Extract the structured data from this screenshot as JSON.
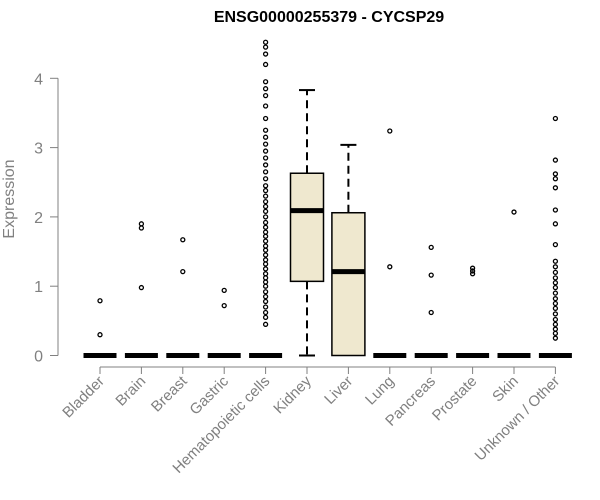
{
  "chart_data": {
    "type": "boxplot",
    "title": "ENSG00000255379 - CYCSP29",
    "xlabel": "",
    "ylabel": "Expression",
    "ylim": [
      0,
      4.5
    ],
    "yticks": [
      0,
      1,
      2,
      3,
      4
    ],
    "categories": [
      "Bladder",
      "Brain",
      "Breast",
      "Gastric",
      "Hematopoietic cells",
      "Kidney",
      "Liver",
      "Lung",
      "Pancreas",
      "Prostate",
      "Skin",
      "Unknown / Other"
    ],
    "boxes": [
      {
        "category": "Bladder",
        "q1": 0,
        "median": 0,
        "q3": 0,
        "whisker_low": 0,
        "whisker_high": 0,
        "outliers": [
          0.3,
          0.79
        ]
      },
      {
        "category": "Brain",
        "q1": 0,
        "median": 0,
        "q3": 0,
        "whisker_low": 0,
        "whisker_high": 0,
        "outliers": [
          0.98,
          1.84,
          1.9
        ]
      },
      {
        "category": "Breast",
        "q1": 0,
        "median": 0,
        "q3": 0,
        "whisker_low": 0,
        "whisker_high": 0,
        "outliers": [
          1.21,
          1.67
        ]
      },
      {
        "category": "Gastric",
        "q1": 0,
        "median": 0,
        "q3": 0,
        "whisker_low": 0,
        "whisker_high": 0,
        "outliers": [
          0.72,
          0.94
        ]
      },
      {
        "category": "Hematopoietic cells",
        "q1": 0,
        "median": 0,
        "q3": 0,
        "whisker_low": 0,
        "whisker_high": 0,
        "outliers": [
          0.45,
          0.55,
          0.62,
          0.7,
          0.78,
          0.85,
          0.92,
          1.0,
          1.06,
          1.12,
          1.18,
          1.25,
          1.32,
          1.38,
          1.45,
          1.52,
          1.58,
          1.65,
          1.72,
          1.78,
          1.85,
          1.92,
          2.0,
          2.08,
          2.15,
          2.22,
          2.3,
          2.38,
          2.45,
          2.55,
          2.65,
          2.75,
          2.85,
          2.95,
          3.05,
          3.15,
          3.25,
          3.42,
          3.6,
          3.75,
          3.85,
          3.95,
          4.2,
          4.35,
          4.45,
          4.52
        ]
      },
      {
        "category": "Kidney",
        "q1": 1.07,
        "median": 2.09,
        "q3": 2.63,
        "whisker_low": 0,
        "whisker_high": 3.83,
        "outliers": []
      },
      {
        "category": "Liver",
        "q1": 0,
        "median": 1.21,
        "q3": 2.06,
        "whisker_low": 0,
        "whisker_high": 3.04,
        "outliers": []
      },
      {
        "category": "Lung",
        "q1": 0,
        "median": 0,
        "q3": 0,
        "whisker_low": 0,
        "whisker_high": 0,
        "outliers": [
          1.28,
          3.24
        ]
      },
      {
        "category": "Pancreas",
        "q1": 0,
        "median": 0,
        "q3": 0,
        "whisker_low": 0,
        "whisker_high": 0,
        "outliers": [
          0.62,
          1.16,
          1.56
        ]
      },
      {
        "category": "Prostate",
        "q1": 0,
        "median": 0,
        "q3": 0,
        "whisker_low": 0,
        "whisker_high": 0,
        "outliers": [
          1.18,
          1.22,
          1.26
        ]
      },
      {
        "category": "Skin",
        "q1": 0,
        "median": 0,
        "q3": 0,
        "whisker_low": 0,
        "whisker_high": 0,
        "outliers": [
          2.07
        ]
      },
      {
        "category": "Unknown / Other",
        "q1": 0,
        "median": 0,
        "q3": 0,
        "whisker_low": 0,
        "whisker_high": 0,
        "outliers": [
          0.25,
          0.32,
          0.38,
          0.45,
          0.52,
          0.6,
          0.68,
          0.75,
          0.82,
          0.9,
          0.98,
          1.05,
          1.12,
          1.2,
          1.28,
          1.36,
          1.6,
          1.9,
          2.1,
          2.42,
          2.55,
          2.62,
          2.82,
          3.42
        ]
      }
    ],
    "colors": {
      "box_fill": "#efe8cf",
      "line": "#000000",
      "axis_text": "#808080",
      "title": "#000000"
    }
  }
}
